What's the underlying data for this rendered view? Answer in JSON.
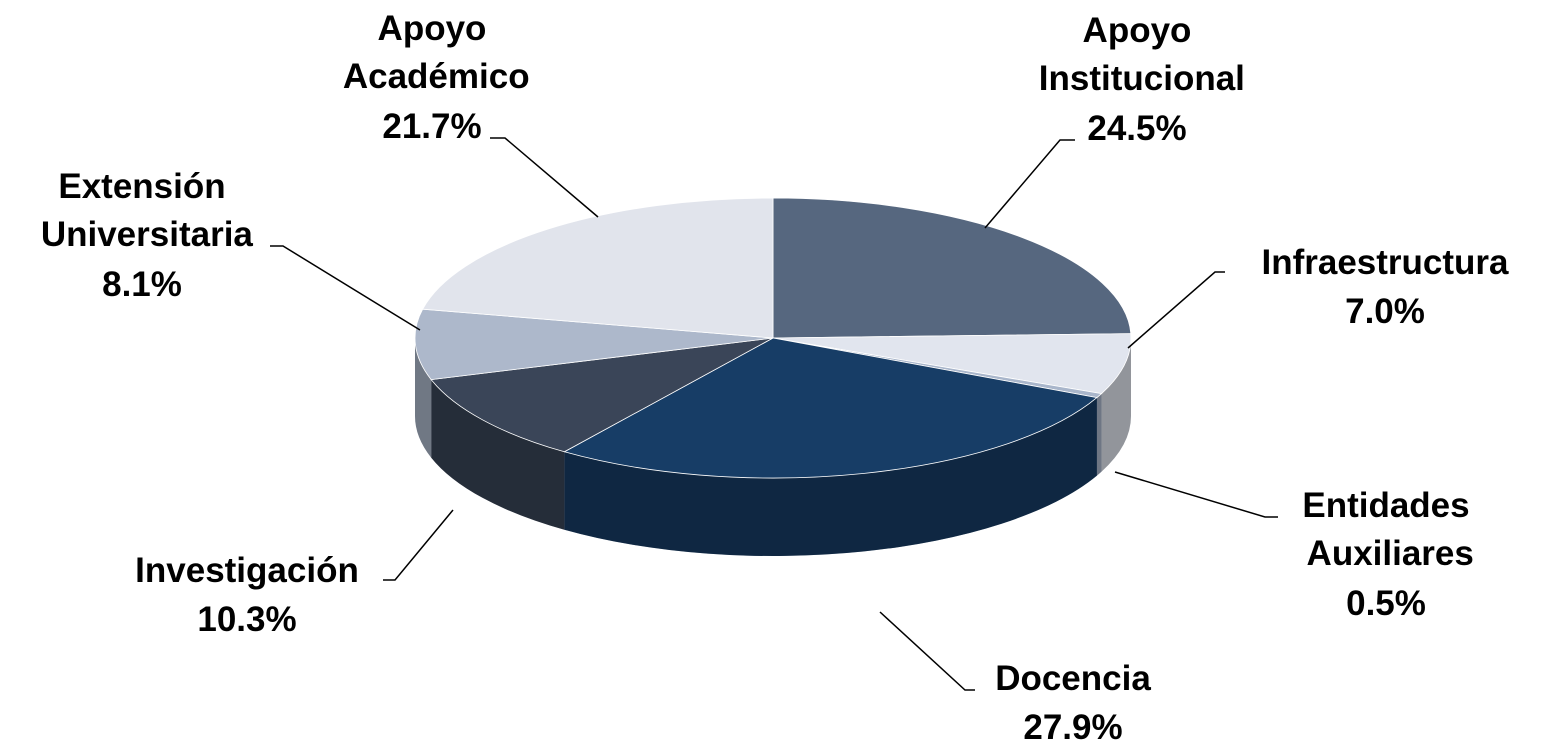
{
  "chart_data": {
    "type": "pie",
    "categories": [
      "Apoyo Institucional",
      "Infraestructura",
      "Entidades Auxiliares",
      "Docencia",
      "Investigación",
      "Extensión Universitaria",
      "Apoyo Académico"
    ],
    "values": [
      24.5,
      7.0,
      0.5,
      27.9,
      10.3,
      8.1,
      21.7
    ],
    "value_labels": [
      "24.5%",
      "7.0%",
      "0.5%",
      "27.9%",
      "10.3%",
      "8.1%",
      "21.7%"
    ],
    "colors": [
      "#56677f",
      "#e1e5ee",
      "#a9b6cb",
      "#173d66",
      "#3a4558",
      "#adb8cb",
      "#e1e4ec"
    ]
  }
}
